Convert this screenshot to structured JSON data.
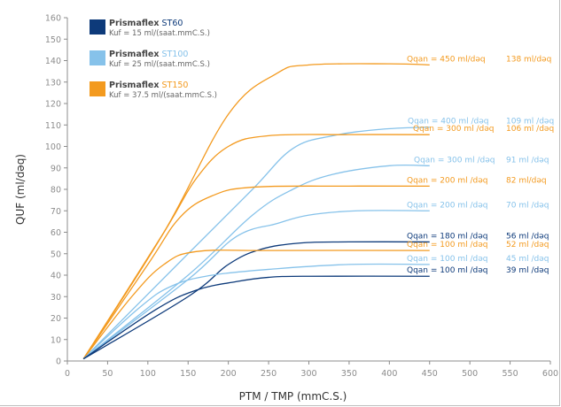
{
  "chart_data": {
    "type": "line",
    "ylabel": "QUF (ml/dəq)",
    "xlabel": "PTM / TMP (mmC.S.)",
    "xlim": [
      0,
      600
    ],
    "ylim": [
      0,
      160
    ],
    "xticks": [
      "0",
      "50",
      "100",
      "150",
      "200",
      "250",
      "300",
      "350",
      "400",
      "450",
      "500",
      "550",
      "600"
    ],
    "yticks": [
      "0",
      "10",
      "20",
      "30",
      "40",
      "50",
      "60",
      "70",
      "80",
      "90",
      "100",
      "110",
      "120",
      "130",
      "140",
      "150",
      "160"
    ],
    "grid": false,
    "legend_position": "top-left",
    "legend": [
      {
        "bold": "Prismaflex",
        "rest": "ST60",
        "kuf": "Kuf = 15 ml/(saat.mmC.S.)",
        "color": "#0d3a7a"
      },
      {
        "bold": "Prismaflex",
        "rest": "ST100",
        "kuf": "Kuf = 25 ml/(saat.mmC.S.)",
        "color": "#86c2ea"
      },
      {
        "bold": "Prismaflex",
        "rest": "ST150",
        "kuf": "Kuf = 37.5 ml/(saat.mmC.S.)",
        "color": "#f39a1f"
      }
    ],
    "series": [
      {
        "color": "#f39a1f",
        "qlabel": "Qqan = 450 ml/dəq",
        "vlabel": "138 ml/dəq",
        "points": [
          [
            20,
            1
          ],
          [
            120,
            60
          ],
          [
            200,
            115
          ],
          [
            260,
            134
          ],
          [
            300,
            138
          ],
          [
            400,
            138.5
          ],
          [
            450,
            138
          ]
        ]
      },
      {
        "color": "#86c2ea",
        "qlabel": "Qqan = 400 ml /dəq",
        "vlabel": "109 ml /dəq",
        "points": [
          [
            20,
            1
          ],
          [
            150,
            50
          ],
          [
            230,
            80
          ],
          [
            280,
            99
          ],
          [
            330,
            105
          ],
          [
            390,
            108
          ],
          [
            450,
            109
          ]
        ]
      },
      {
        "color": "#f39a1f",
        "qlabel": "Qqan = 300 ml /dəq",
        "vlabel": "106 ml /dəq",
        "points": [
          [
            20,
            1
          ],
          [
            120,
            60
          ],
          [
            160,
            85
          ],
          [
            200,
            100
          ],
          [
            250,
            105
          ],
          [
            350,
            105.5
          ],
          [
            450,
            105.5
          ]
        ]
      },
      {
        "color": "#86c2ea",
        "qlabel": "Qqan = 300 ml /dəq",
        "vlabel": "91 ml /dəq",
        "points": [
          [
            20,
            1
          ],
          [
            150,
            40
          ],
          [
            230,
            68
          ],
          [
            280,
            80
          ],
          [
            330,
            87
          ],
          [
            400,
            91
          ],
          [
            450,
            91
          ]
        ]
      },
      {
        "color": "#f39a1f",
        "qlabel": "Qqan = 200 ml /dəq",
        "vlabel": "82 ml/dəq",
        "points": [
          [
            20,
            1
          ],
          [
            100,
            45
          ],
          [
            140,
            67
          ],
          [
            180,
            77
          ],
          [
            230,
            81
          ],
          [
            350,
            81.5
          ],
          [
            450,
            81.5
          ]
        ]
      },
      {
        "color": "#86c2ea",
        "qlabel": "Qqan = 200 ml /dəq",
        "vlabel": "70 ml /dəq",
        "points": [
          [
            20,
            1
          ],
          [
            150,
            38
          ],
          [
            210,
            58
          ],
          [
            260,
            64
          ],
          [
            300,
            68
          ],
          [
            360,
            70
          ],
          [
            450,
            70
          ]
        ]
      },
      {
        "color": "#0d3a7a",
        "qlabel": "Qqan = 180 ml /dəq",
        "vlabel": "56 ml /dəq",
        "points": [
          [
            20,
            1
          ],
          [
            150,
            30
          ],
          [
            200,
            45
          ],
          [
            240,
            52
          ],
          [
            290,
            55
          ],
          [
            350,
            55.5
          ],
          [
            450,
            55.5
          ]
        ]
      },
      {
        "color": "#f39a1f",
        "qlabel": "Qqan = 100 ml /dəq",
        "vlabel": "52 ml /dəq",
        "points": [
          [
            20,
            1
          ],
          [
            80,
            30
          ],
          [
            120,
            45
          ],
          [
            160,
            51
          ],
          [
            250,
            51.5
          ],
          [
            450,
            51.5
          ]
        ]
      },
      {
        "color": "#86c2ea",
        "qlabel": "Qqan = 100 ml /dəq",
        "vlabel": "45 ml /dəq",
        "points": [
          [
            20,
            1
          ],
          [
            90,
            25
          ],
          [
            130,
            35
          ],
          [
            180,
            40
          ],
          [
            260,
            43
          ],
          [
            350,
            45
          ],
          [
            450,
            45
          ]
        ]
      },
      {
        "color": "#0d3a7a",
        "qlabel": "Qqan = 100 ml /dəq",
        "vlabel": "39 ml /dəq",
        "points": [
          [
            20,
            1
          ],
          [
            110,
            24
          ],
          [
            160,
            33
          ],
          [
            210,
            37
          ],
          [
            250,
            39
          ],
          [
            300,
            39.5
          ],
          [
            450,
            39.5
          ]
        ]
      }
    ]
  }
}
